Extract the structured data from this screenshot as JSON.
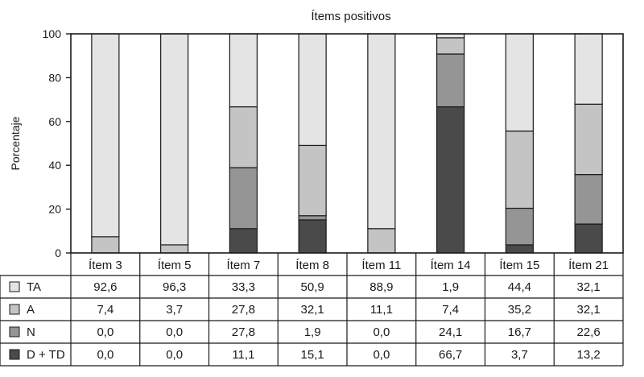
{
  "chart_data": {
    "type": "bar",
    "stacked": true,
    "title": "Ítems positivos",
    "ylabel": "Porcentaje",
    "ylim": [
      0,
      100
    ],
    "yticks": [
      0,
      20,
      40,
      60,
      80,
      100
    ],
    "categories": [
      "Ítem 3",
      "Ítem 5",
      "Ítem 7",
      "Ítem 8",
      "Ítem 11",
      "Ítem 14",
      "Ítem 15",
      "Ítem 21"
    ],
    "series": [
      {
        "name": "TA",
        "color": "#e4e4e4",
        "values": [
          92.6,
          96.3,
          33.3,
          50.9,
          88.9,
          1.9,
          44.4,
          32.1
        ],
        "labels": [
          "92,6",
          "96,3",
          "33,3",
          "50,9",
          "88,9",
          "1,9",
          "44,4",
          "32,1"
        ]
      },
      {
        "name": "A",
        "color": "#c4c4c4",
        "values": [
          7.4,
          3.7,
          27.8,
          32.1,
          11.1,
          7.4,
          35.2,
          32.1
        ],
        "labels": [
          "7,4",
          "3,7",
          "27,8",
          "32,1",
          "11,1",
          "7,4",
          "35,2",
          "32,1"
        ]
      },
      {
        "name": "N",
        "color": "#959595",
        "values": [
          0.0,
          0.0,
          27.8,
          1.9,
          0.0,
          24.1,
          16.7,
          22.6
        ],
        "labels": [
          "0,0",
          "0,0",
          "27,8",
          "1,9",
          "0,0",
          "24,1",
          "16,7",
          "22,6"
        ]
      },
      {
        "name": "D + TD",
        "color": "#4a4a4a",
        "values": [
          0.0,
          0.0,
          11.1,
          15.1,
          0.0,
          66.7,
          3.7,
          13.2
        ],
        "labels": [
          "0,0",
          "0,0",
          "11,1",
          "15,1",
          "0,0",
          "66,7",
          "3,7",
          "13,2"
        ]
      }
    ],
    "grid": false,
    "legend": "table-left"
  }
}
